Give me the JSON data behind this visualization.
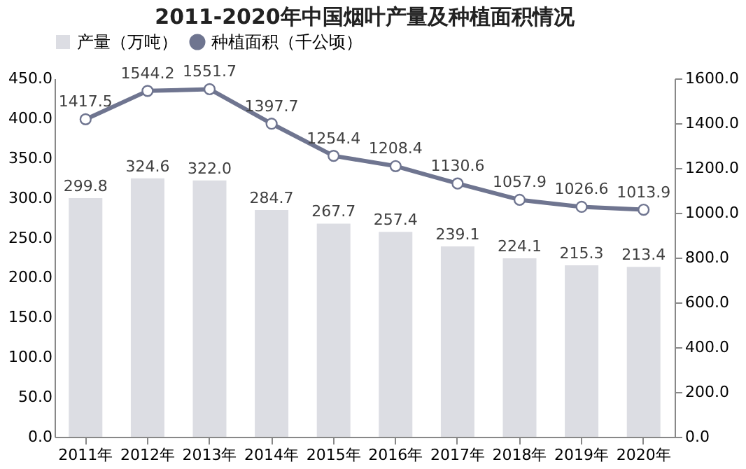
{
  "chart_data": {
    "type": "bar",
    "title": "2011-2020年中国烟叶产量及种植面积情况",
    "categories": [
      "2011年",
      "2012年",
      "2013年",
      "2014年",
      "2015年",
      "2016年",
      "2017年",
      "2018年",
      "2019年",
      "2020年"
    ],
    "series": [
      {
        "name": "产量（万吨）",
        "color": "#dcdde3",
        "values": [
          299.8,
          324.6,
          322.0,
          284.7,
          267.7,
          257.4,
          239.1,
          224.1,
          215.3,
          213.4
        ],
        "value_labels": [
          "299.8",
          "324.6",
          "322.0",
          "284.7",
          "267.7",
          "257.4",
          "239.1",
          "224.1",
          "215.3",
          "213.4"
        ]
      },
      {
        "name": "种植面积（千公顷）",
        "type": "line",
        "axis": "y2",
        "color": "#6f7590",
        "marker": "circle",
        "values": [
          1417.5,
          1544.2,
          1551.7,
          1397.7,
          1254.4,
          1208.4,
          1130.6,
          1057.9,
          1026.6,
          1013.9
        ],
        "value_labels": [
          "1417.5",
          "1544.2",
          "1551.7",
          "1397.7",
          "1254.4",
          "1208.4",
          "1130.6",
          "1057.9",
          "1026.6",
          "1013.9"
        ]
      }
    ],
    "ylim": [
      0,
      450
    ],
    "yticks": [
      {
        "value": 0,
        "label": "0.0"
      },
      {
        "value": 50,
        "label": "50.0"
      },
      {
        "value": 100,
        "label": "100.0"
      },
      {
        "value": 150,
        "label": "150.0"
      },
      {
        "value": 200,
        "label": "200.0"
      },
      {
        "value": 250,
        "label": "250.0"
      },
      {
        "value": 300,
        "label": "300.0"
      },
      {
        "value": 350,
        "label": "350.0"
      },
      {
        "value": 400,
        "label": "400.0"
      },
      {
        "value": 450,
        "label": "450.0"
      }
    ],
    "y2lim": [
      0,
      1600
    ],
    "y2ticks": [
      {
        "value": 0,
        "label": "0.0"
      },
      {
        "value": 200,
        "label": "200.0"
      },
      {
        "value": 400,
        "label": "400.0"
      },
      {
        "value": 600,
        "label": "600.0"
      },
      {
        "value": 800,
        "label": "800.0"
      },
      {
        "value": 1000,
        "label": "1000.0"
      },
      {
        "value": 1200,
        "label": "1200.0"
      },
      {
        "value": 1400,
        "label": "1400.0"
      },
      {
        "value": 1600,
        "label": "1600.0"
      }
    ],
    "grid": false,
    "legend": "top"
  }
}
